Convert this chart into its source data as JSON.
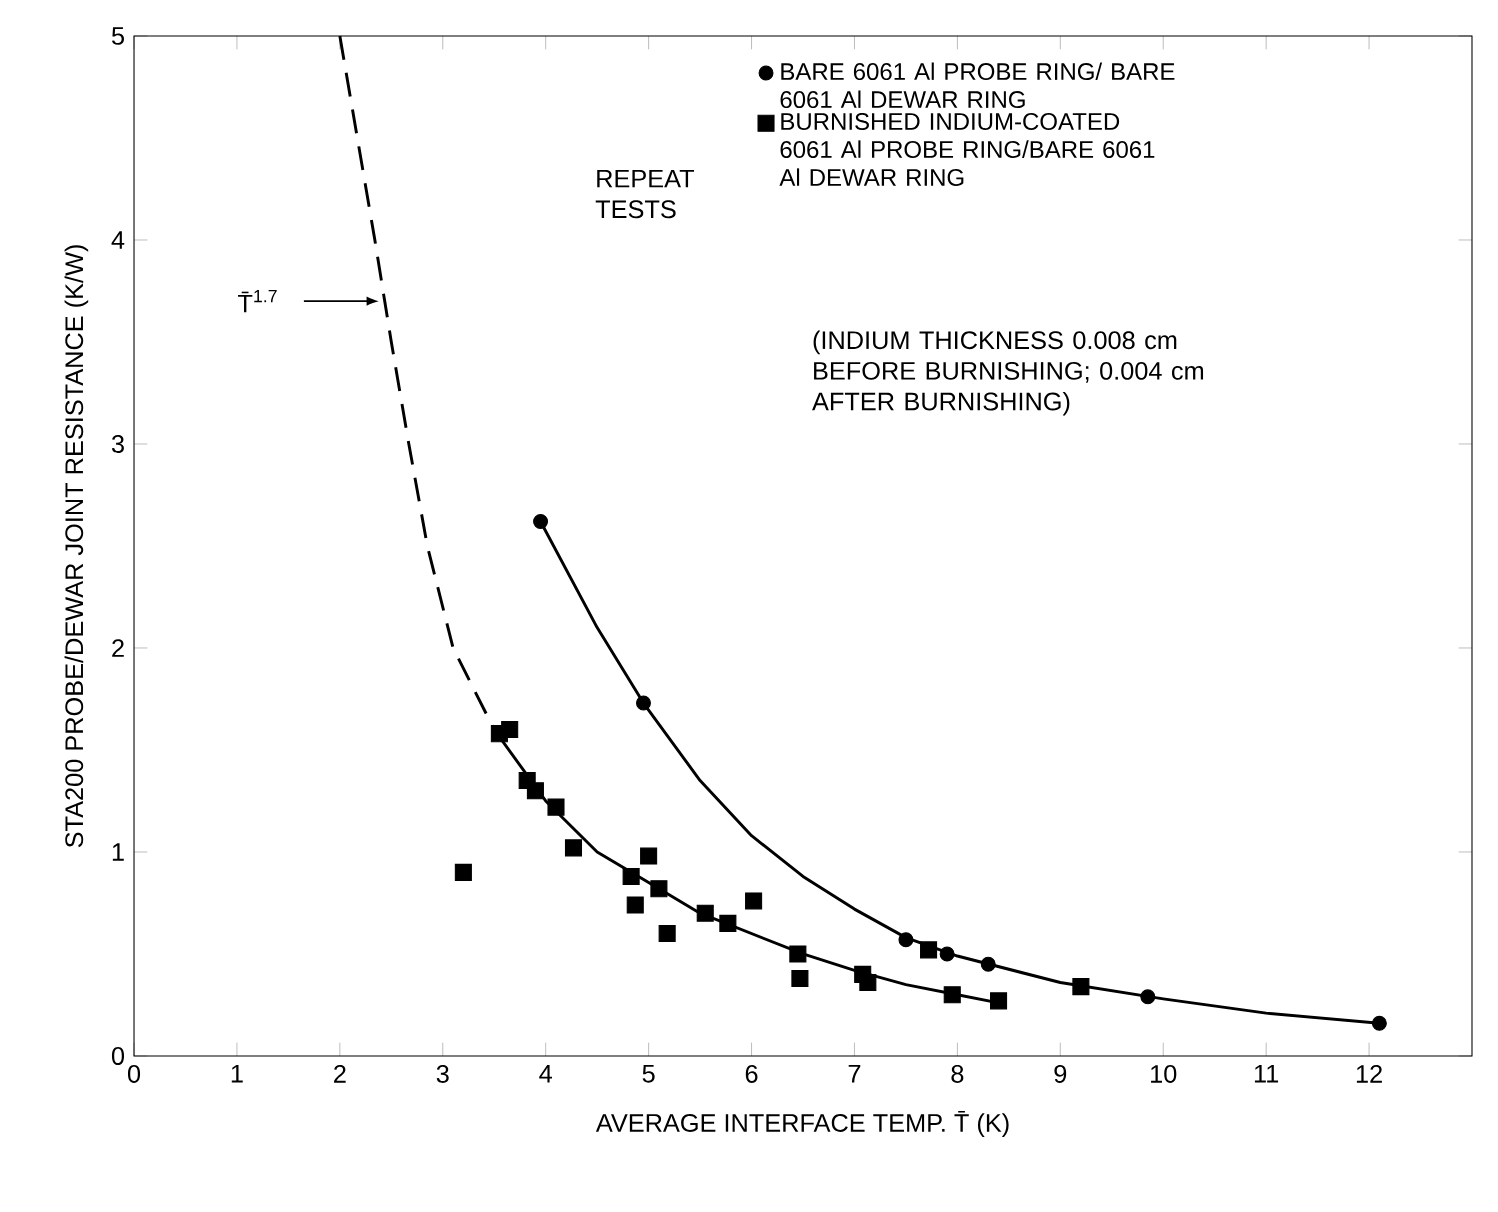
{
  "chart_data": {
    "type": "scatter",
    "xlabel": "AVERAGE INTERFACE TEMP. T̄ (K)",
    "ylabel": "STA200 PROBE/DEWAR JOINT RESISTANCE (K/W)",
    "xlim": [
      0,
      13
    ],
    "ylim": [
      0,
      5
    ],
    "xticks": [
      0,
      1,
      2,
      3,
      4,
      5,
      6,
      7,
      8,
      9,
      10,
      11,
      12
    ],
    "yticks": [
      0,
      1,
      2,
      3,
      4,
      5
    ],
    "grid": false,
    "legend": "top right",
    "series": [
      {
        "name": "BARE 6061 Al PROBE RING/ BARE 6061 Al DEWAR RING",
        "marker": "circle",
        "color": "#000000",
        "x": [
          3.95,
          4.95,
          7.5,
          7.9,
          8.3,
          9.85,
          12.1
        ],
        "values": [
          2.62,
          1.73,
          0.57,
          0.5,
          0.45,
          0.29,
          0.16
        ]
      },
      {
        "name": "BURNISHED INDIUM-COATED 6061 Al PROBE RING/BARE 6061 Al DEWAR RING",
        "marker": "square",
        "color": "#000000",
        "x": [
          3.55,
          3.65,
          3.82,
          3.9,
          4.1,
          4.27,
          3.2,
          4.83,
          5.0,
          5.1,
          4.87,
          5.55,
          5.77,
          5.18,
          6.02,
          6.45,
          6.47,
          7.08,
          7.13,
          7.72,
          7.95,
          8.4,
          9.2
        ],
        "values": [
          1.58,
          1.6,
          1.35,
          1.3,
          1.22,
          1.02,
          0.9,
          0.88,
          0.98,
          0.82,
          0.74,
          0.7,
          0.65,
          0.6,
          0.76,
          0.5,
          0.38,
          0.4,
          0.36,
          0.52,
          0.3,
          0.27,
          0.34
        ]
      },
      {
        "type": "line",
        "line_style": "dashed",
        "marker": "none",
        "color": "#000000",
        "x": [
          2.0,
          2.34,
          2.5,
          2.67,
          2.85,
          3.1,
          3.3,
          3.5
        ],
        "values": [
          5.0,
          4.0,
          3.5,
          3.0,
          2.5,
          2.0,
          1.8,
          1.6
        ]
      },
      {
        "type": "line",
        "line_style": "solid",
        "marker": "none",
        "color": "#000000",
        "x": [
          3.5,
          4.0,
          4.5,
          5.0,
          5.5,
          6.0,
          6.5,
          7.0,
          7.5,
          8.0,
          8.4
        ],
        "values": [
          1.6,
          1.25,
          1.0,
          0.85,
          0.7,
          0.6,
          0.5,
          0.42,
          0.35,
          0.3,
          0.26
        ]
      },
      {
        "type": "line",
        "line_style": "solid",
        "marker": "none",
        "color": "#000000",
        "x": [
          3.95,
          4.5,
          4.95,
          5.5,
          6.0,
          6.5,
          7.0,
          7.5,
          8.0,
          9.0,
          10.0,
          11.0,
          12.1
        ],
        "values": [
          2.62,
          2.1,
          1.73,
          1.35,
          1.08,
          0.88,
          0.72,
          0.58,
          0.49,
          0.36,
          0.28,
          0.21,
          0.16
        ]
      }
    ],
    "annotations": [
      "REPEAT TESTS",
      "(INDIUM THICKNESS 0.008 cm BEFORE BURNISHING; 0.004 cm AFTER BURNISHING)",
      "T̄$^{1.7}$"
    ]
  }
}
